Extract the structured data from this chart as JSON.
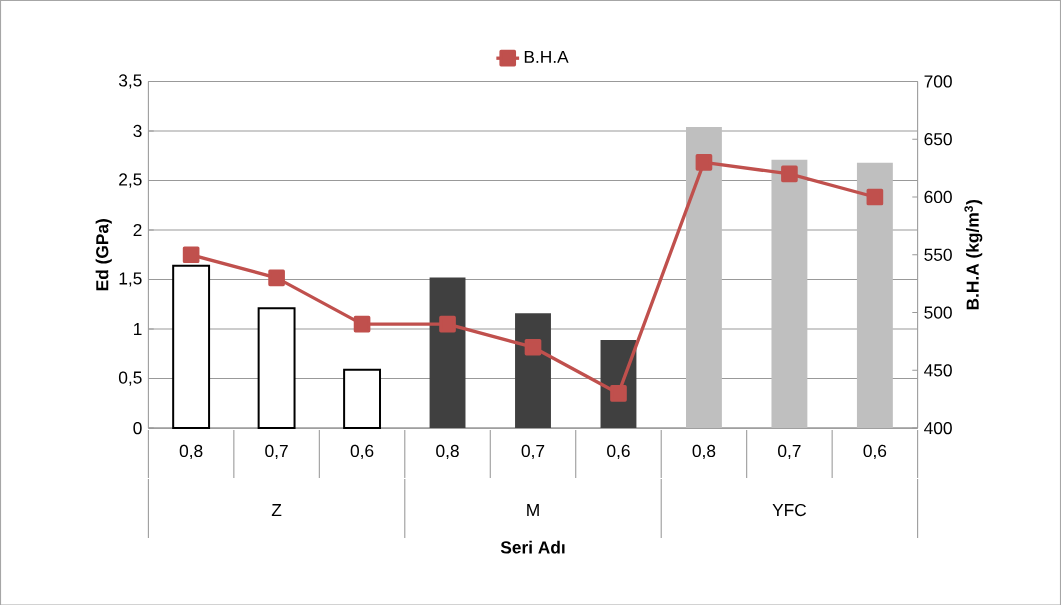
{
  "chart_data": {
    "type": "bar",
    "categories": [
      "0,8",
      "0,7",
      "0,6",
      "0,8",
      "0,7",
      "0,6",
      "0,8",
      "0,7",
      "0,6"
    ],
    "annotations": [
      "Z",
      "M",
      "YFC"
    ],
    "series": [
      {
        "values": [
          1.64,
          1.21,
          0.59,
          1.52,
          1.16,
          0.89,
          3.04,
          2.71,
          2.68
        ],
        "colors": [
          "#000000",
          "#000000",
          "#000000",
          "#404040",
          "#404040",
          "#404040",
          "#bfbfbf",
          "#bfbfbf",
          "#bfbfbf"
        ]
      },
      {
        "type": "line",
        "name": "B.H.A",
        "axis": "y2",
        "color": "#c0504d",
        "marker": "square",
        "values": [
          550,
          530,
          490,
          490,
          470,
          430,
          630,
          620,
          600
        ]
      }
    ],
    "xlabel": "Seri Adı",
    "ylabel": "Ed (GPa)",
    "y2label": "B.H.A (kg/m$^{3}$)",
    "ylim": [
      0,
      3.5
    ],
    "yticks": [
      0,
      {
        "value": 0.5,
        "label": "0,5"
      },
      1,
      {
        "value": 1.5,
        "label": "1,5"
      },
      2,
      {
        "value": 2.5,
        "label": "2,5"
      },
      3,
      {
        "value": 3.5,
        "label": "3,5"
      }
    ],
    "y2lim": [
      400,
      700
    ],
    "y2ticks": [
      400,
      450,
      500,
      550,
      600,
      650,
      700
    ],
    "grid": "y",
    "legend": "top"
  }
}
